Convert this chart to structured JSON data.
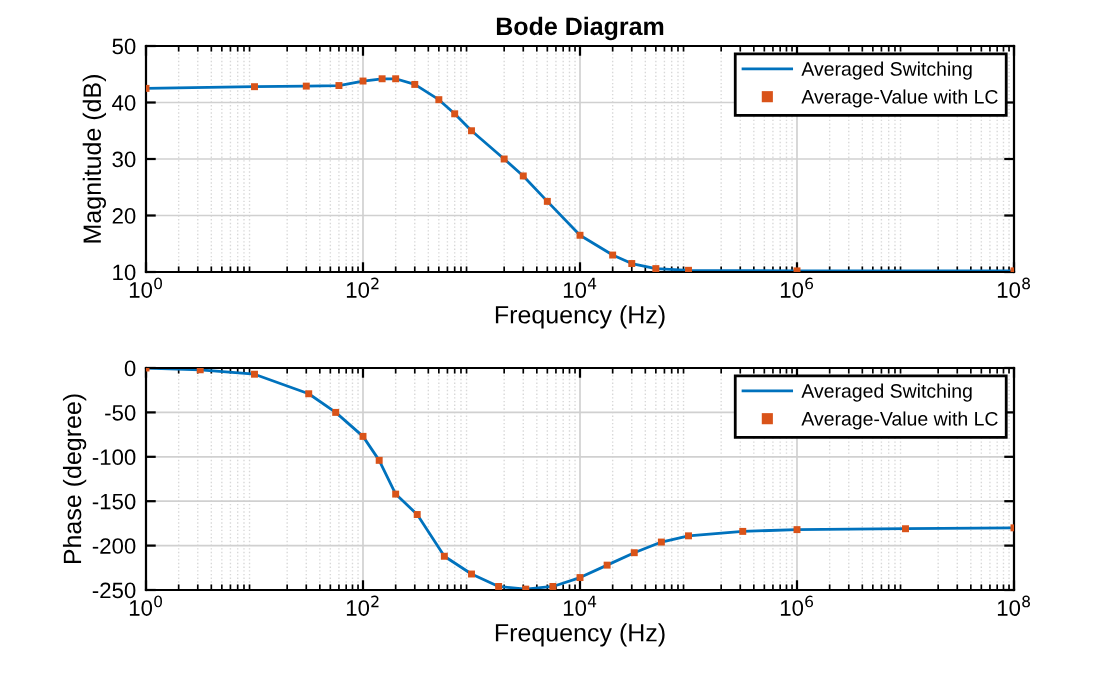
{
  "chart_data": [
    {
      "type": "line",
      "title": "Bode Diagram",
      "xlabel": "Frequency (Hz)",
      "ylabel": "Magnitude (dB)",
      "log": "x",
      "grid": true,
      "legend": "top right",
      "xlim": [
        1,
        100000000
      ],
      "xticks": [
        {
          "value": 1,
          "label": "10$^{0}$"
        },
        {
          "value": 100,
          "label": "10$^{2}$"
        },
        {
          "value": 10000,
          "label": "10$^{4}$"
        },
        {
          "value": 1000000,
          "label": "10$^{6}$"
        },
        {
          "value": 100000000,
          "label": "10$^{8}$"
        }
      ],
      "ylim": [
        10,
        50
      ],
      "yticks": [
        10,
        20,
        30,
        40,
        50
      ],
      "series": [
        {
          "name": "Averaged Switching",
          "color": "#0072bd",
          "x": [
            1,
            10,
            30,
            60,
            100,
            150,
            200,
            300,
            500,
            700,
            1000,
            2000,
            3000,
            5000,
            10000,
            20000,
            30000,
            50000,
            100000,
            1000000,
            100000000
          ],
          "values": [
            42.5,
            42.8,
            42.9,
            43.0,
            43.8,
            44.2,
            44.2,
            43.2,
            40.5,
            38,
            35,
            30,
            27,
            22.5,
            16.5,
            13,
            11.5,
            10.6,
            10.3,
            10.2,
            10.2
          ]
        },
        {
          "name": "Average-Value with LC",
          "type": "scatter",
          "marker": "square",
          "color": "#d95319",
          "x": [
            1,
            10,
            30,
            60,
            100,
            150,
            200,
            300,
            500,
            700,
            1000,
            2000,
            3000,
            5000,
            10000,
            20000,
            30000,
            50000,
            100000,
            1000000,
            100000000
          ],
          "values": [
            42.5,
            42.8,
            42.9,
            43.0,
            43.8,
            44.2,
            44.2,
            43.2,
            40.5,
            38,
            35,
            30,
            27,
            22.5,
            16.5,
            13,
            11.5,
            10.6,
            10.3,
            10.2,
            10.2
          ]
        }
      ]
    },
    {
      "type": "line",
      "xlabel": "Frequency (Hz)",
      "ylabel": "Phase (degree)",
      "log": "x",
      "grid": true,
      "legend": "top right",
      "xlim": [
        1,
        100000000
      ],
      "xticks": [
        {
          "value": 1,
          "label": "10$^{0}$"
        },
        {
          "value": 100,
          "label": "10$^{2}$"
        },
        {
          "value": 10000,
          "label": "10$^{4}$"
        },
        {
          "value": 1000000,
          "label": "10$^{6}$"
        },
        {
          "value": 100000000,
          "label": "10$^{8}$"
        }
      ],
      "ylim": [
        -250,
        0
      ],
      "yticks": [
        -250,
        -200,
        -150,
        -100,
        -50,
        0
      ],
      "series": [
        {
          "name": "Averaged Switching",
          "color": "#0072bd",
          "x": [
            1,
            3.16,
            10,
            31.6,
            56,
            100,
            141,
            200,
            316,
            562,
            1000,
            1778,
            3162,
            5623,
            10000,
            17783,
            31623,
            56234,
            100000,
            316228,
            1000000,
            10000000,
            100000000
          ],
          "values": [
            0,
            -2,
            -7,
            -29,
            -50,
            -77,
            -104,
            -142,
            -165,
            -212,
            -232,
            -246,
            -249,
            -246,
            -236,
            -222,
            -208,
            -196,
            -189,
            -184,
            -182,
            -181,
            -180
          ]
        },
        {
          "name": "Average-Value with LC",
          "type": "scatter",
          "marker": "square",
          "color": "#d95319",
          "x": [
            1,
            3.16,
            10,
            31.6,
            56,
            100,
            141,
            200,
            316,
            562,
            1000,
            1778,
            3162,
            5623,
            10000,
            17783,
            31623,
            56234,
            100000,
            316228,
            1000000,
            10000000,
            100000000
          ],
          "values": [
            0,
            -2,
            -7,
            -29,
            -50,
            -77,
            -104,
            -142,
            -165,
            -212,
            -232,
            -246,
            -249,
            -246,
            -236,
            -222,
            -208,
            -196,
            -189,
            -184,
            -182,
            -181,
            -180
          ]
        }
      ]
    }
  ]
}
